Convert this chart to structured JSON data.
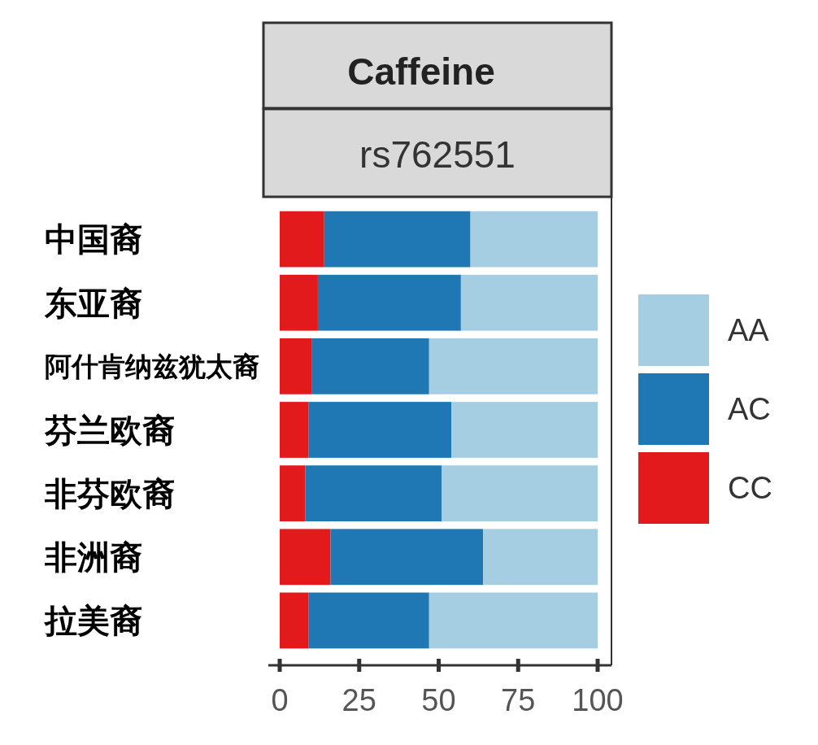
{
  "chart_data": {
    "type": "bar",
    "orientation": "horizontal",
    "stacked": true,
    "title": "Caffeine",
    "subtitle": "rs762551",
    "categories": [
      "中国裔",
      "东亚裔",
      "阿什肯纳兹犹太裔",
      "芬兰欧裔",
      "非芬欧裔",
      "非洲裔",
      "拉美裔"
    ],
    "series": [
      {
        "name": "CC",
        "color": "#e31a1c",
        "values": [
          14,
          12,
          10,
          9,
          8,
          16,
          9
        ]
      },
      {
        "name": "AC",
        "color": "#1f78b4",
        "values": [
          46,
          45,
          37,
          45,
          43,
          48,
          38
        ]
      },
      {
        "name": "AA",
        "color": "#a6cee3",
        "values": [
          40,
          43,
          53,
          46,
          49,
          36,
          53
        ]
      }
    ],
    "xlim": [
      0,
      100
    ],
    "xticks": [
      0,
      25,
      50,
      75,
      100
    ],
    "legend": "right",
    "grid": false
  }
}
